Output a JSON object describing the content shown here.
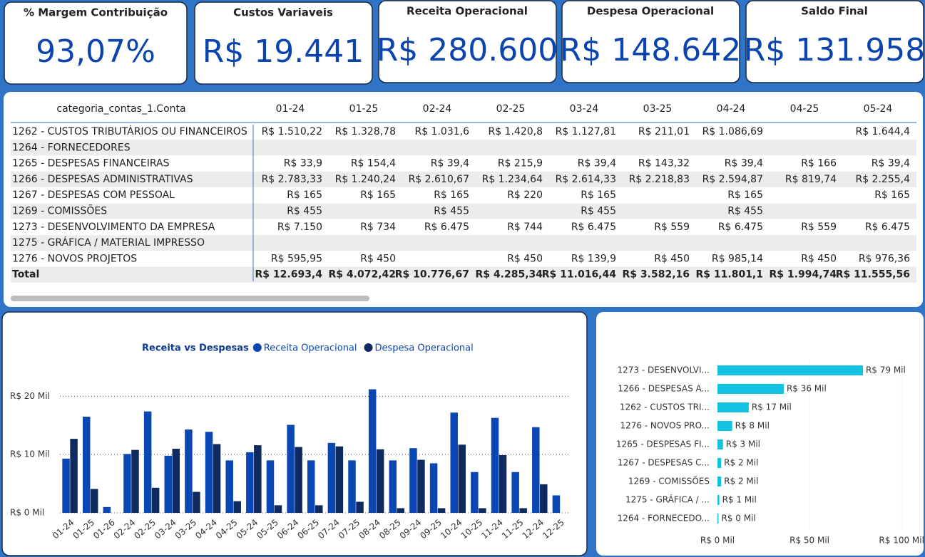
{
  "kpis": [
    {
      "title": "% Margem Contribuição",
      "value": "93,07%"
    },
    {
      "title": "Custos Variaveis",
      "value": "R$ 19.441"
    },
    {
      "title": "Receita Operacional",
      "value": "R$ 280.600"
    },
    {
      "title": "Despesa Operacional",
      "value": "R$ 148.642"
    },
    {
      "title": "Saldo Final",
      "value": "R$ 131.958"
    }
  ],
  "table": {
    "header": [
      "categoria_contas_1.Conta",
      "01-24",
      "01-25",
      "02-24",
      "02-25",
      "03-24",
      "03-25",
      "04-24",
      "04-25",
      "05-24"
    ],
    "rows": [
      [
        "1262 - CUSTOS TRIBUTÁRIOS OU FINANCEIROS",
        "R$ 1.510,22",
        "R$ 1.328,78",
        "R$ 1.031,6",
        "R$ 1.420,8",
        "R$ 1.127,81",
        "R$ 211,01",
        "R$ 1.086,69",
        null,
        "R$ 1.644,4"
      ],
      [
        "1264 - FORNECEDORES",
        null,
        null,
        null,
        null,
        null,
        null,
        null,
        null,
        null
      ],
      [
        "1265 - DESPESAS FINANCEIRAS",
        "R$ 33,9",
        "R$ 154,4",
        "R$ 39,4",
        "R$ 215,9",
        "R$ 39,4",
        "R$ 143,32",
        "R$ 39,4",
        "R$ 166",
        "R$ 39,4"
      ],
      [
        "1266 - DESPESAS ADMINISTRATIVAS",
        "R$ 2.783,33",
        "R$ 1.240,24",
        "R$ 2.610,67",
        "R$ 1.234,64",
        "R$ 2.614,33",
        "R$ 2.218,83",
        "R$ 2.594,87",
        "R$ 819,74",
        "R$ 2.255,4"
      ],
      [
        "1267 - DESPESAS COM PESSOAL",
        "R$ 165",
        "R$ 165",
        "R$ 165",
        "R$ 220",
        "R$ 165",
        null,
        "R$ 165",
        null,
        "R$ 165"
      ],
      [
        "1269 - COMISSÕES",
        "R$ 455",
        null,
        "R$ 455",
        null,
        "R$ 455",
        null,
        "R$ 455",
        null,
        null
      ],
      [
        "1273 - DESENVOLVIMENTO DA EMPRESA",
        "R$ 7.150",
        "R$ 734",
        "R$ 6.475",
        "R$ 744",
        "R$ 6.475",
        "R$ 559",
        "R$ 6.475",
        "R$ 559",
        "R$ 6.475"
      ],
      [
        "1275 - GRÁFICA / MATERIAL IMPRESSO",
        null,
        null,
        null,
        null,
        null,
        null,
        null,
        null,
        null
      ],
      [
        "1276 - NOVOS PROJETOS",
        "R$ 595,95",
        "R$ 450",
        null,
        "R$ 450",
        "R$ 139,9",
        "R$ 450",
        "R$ 985,14",
        "R$ 450",
        "R$ 976,36"
      ]
    ],
    "total": [
      "Total",
      "R$ 12.693,4",
      "R$ 4.072,42",
      "R$ 10.776,67",
      "R$ 4.285,34",
      "R$ 11.016,44",
      "R$ 3.582,16",
      "R$ 11.801,1",
      "R$ 1.994,74",
      "R$ 11.555,56"
    ]
  },
  "chart_data": [
    {
      "type": "column",
      "title": "Receita vs Despesas",
      "categories": [
        "01-24",
        "01-25",
        "01-26",
        "02-24",
        "02-25",
        "03-24",
        "03-25",
        "04-24",
        "04-25",
        "05-24",
        "05-25",
        "06-24",
        "06-25",
        "07-24",
        "07-25",
        "08-24",
        "08-25",
        "09-24",
        "09-25",
        "10-24",
        "10-25",
        "11-24",
        "11-25",
        "12-24",
        "12-25"
      ],
      "series": [
        {
          "name": "Receita Operacional",
          "color": "#0b47b3",
          "values": [
            9.3,
            16.5,
            1.0,
            10.1,
            17.4,
            9.8,
            14.3,
            13.9,
            9.0,
            10.4,
            9.0,
            15.1,
            9.0,
            12.0,
            9.0,
            21.2,
            9.0,
            11.1,
            8.5,
            17.2,
            7.0,
            16.3,
            7.0,
            14.7,
            3.0
          ]
        },
        {
          "name": "Despesa Operacional",
          "color": "#0f2a5e",
          "values": [
            12.7,
            4.1,
            null,
            10.8,
            4.3,
            11.0,
            3.6,
            11.8,
            2.0,
            11.6,
            1.3,
            11.3,
            1.3,
            11.4,
            1.9,
            10.9,
            0.8,
            9.1,
            0.8,
            11.7,
            0.8,
            9.9,
            0.8,
            4.9,
            null
          ]
        }
      ],
      "ylim": [
        0,
        22
      ],
      "yticks": [
        {
          "value": 0,
          "label": "R$ 0 Mil"
        },
        {
          "value": 10,
          "label": "R$ 10 Mil"
        },
        {
          "value": 20,
          "label": "R$ 20 Mil"
        }
      ],
      "grid": true
    },
    {
      "type": "hbar",
      "categories": [
        "1273 - DESENVOLVI...",
        "1266 - DESPESAS A...",
        "1262 - CUSTOS TRI...",
        "1276 - NOVOS PRO...",
        "1265 - DESPESAS FI...",
        "1267 - DESPESAS C...",
        "1269 - COMISSÕES",
        "1275 - GRÁFICA / ...",
        "1264 - FORNECEDO..."
      ],
      "values": [
        79,
        36,
        17,
        8,
        3,
        2,
        2,
        1,
        0
      ],
      "value_labels": [
        "R$ 79 Mil",
        "R$ 36 Mil",
        "R$ 17 Mil",
        "R$ 8 Mil",
        "R$ 3 Mil",
        "R$ 2 Mil",
        "R$ 2 Mil",
        "R$ 1 Mil",
        "R$ 0 Mil"
      ],
      "color": "#12c2e0",
      "xlim": [
        0,
        110
      ],
      "xticks": [
        {
          "value": 0,
          "label": "R$ 0 Mil"
        },
        {
          "value": 50,
          "label": "R$ 50 Mil"
        },
        {
          "value": 100,
          "label": "R$ 100 Mil"
        }
      ],
      "grid": true
    }
  ]
}
